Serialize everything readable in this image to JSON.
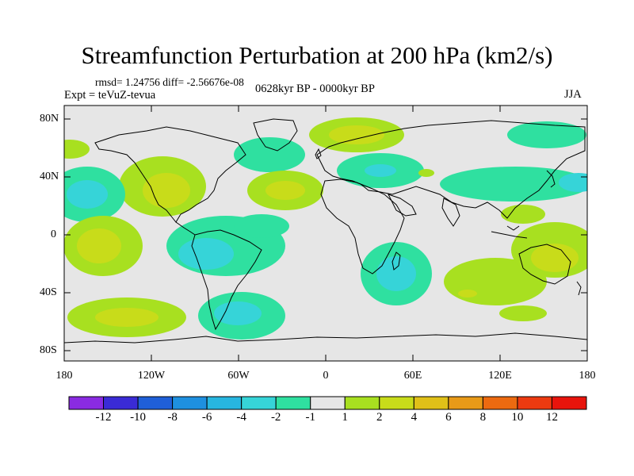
{
  "title": "Streamfunction Perturbation at 200 hPa (km2/s)",
  "stats_text": "rmsd= 1.24756 diff= -2.56676e-08",
  "experiment_text": "Expt = teVuZ-tevua",
  "period_text": "0628kyr BP - 0000kyr BP",
  "season_text": "JJA",
  "map": {
    "lat_ticks": [
      "80N",
      "40N",
      "0",
      "40S",
      "80S"
    ],
    "lon_ticks": [
      "180",
      "120W",
      "60W",
      "0",
      "60E",
      "120E",
      "180"
    ]
  },
  "colorbar": {
    "levels": [
      "-12",
      "-10",
      "-8",
      "-6",
      "-4",
      "-2",
      "-1",
      "1",
      "2",
      "4",
      "6",
      "8",
      "10",
      "12"
    ],
    "colors": [
      "#8a2be2",
      "#3a2bd6",
      "#1f5fd8",
      "#1e90e0",
      "#27b6e0",
      "#36d4d8",
      "#2fe0a0",
      "#e6e6e6",
      "#a8e020",
      "#c8dc1a",
      "#e0c018",
      "#e89a18",
      "#ec6a10",
      "#ec3a10",
      "#e8140c"
    ]
  },
  "colors": {
    "background_map": "#e6e6e6",
    "neg_light": "#2fe0a0",
    "neg_mid": "#36d4d8",
    "pos_light": "#a8e020",
    "pos_mid": "#c8dc1a"
  }
}
